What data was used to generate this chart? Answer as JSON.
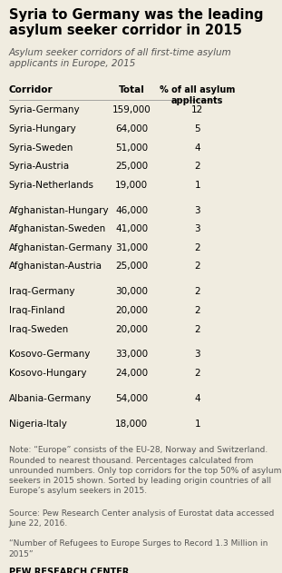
{
  "title": "Syria to Germany was the leading\nasylum seeker corridor in 2015",
  "subtitle": "Asylum seeker corridors of all first-time asylum\napplicants in Europe, 2015",
  "col_header_corridor": "Corridor",
  "col_header_total": "Total",
  "col_header_pct": "% of all asylum\napplicants",
  "rows": [
    {
      "corridor": "Syria-Germany",
      "total": "159,000",
      "pct": "12",
      "group": 1
    },
    {
      "corridor": "Syria-Hungary",
      "total": "64,000",
      "pct": "5",
      "group": 1
    },
    {
      "corridor": "Syria-Sweden",
      "total": "51,000",
      "pct": "4",
      "group": 1
    },
    {
      "corridor": "Syria-Austria",
      "total": "25,000",
      "pct": "2",
      "group": 1
    },
    {
      "corridor": "Syria-Netherlands",
      "total": "19,000",
      "pct": "1",
      "group": 1
    },
    {
      "corridor": "Afghanistan-Hungary",
      "total": "46,000",
      "pct": "3",
      "group": 2
    },
    {
      "corridor": "Afghanistan-Sweden",
      "total": "41,000",
      "pct": "3",
      "group": 2
    },
    {
      "corridor": "Afghanistan-Germany",
      "total": "31,000",
      "pct": "2",
      "group": 2
    },
    {
      "corridor": "Afghanistan-Austria",
      "total": "25,000",
      "pct": "2",
      "group": 2
    },
    {
      "corridor": "Iraq-Germany",
      "total": "30,000",
      "pct": "2",
      "group": 3
    },
    {
      "corridor": "Iraq-Finland",
      "total": "20,000",
      "pct": "2",
      "group": 3
    },
    {
      "corridor": "Iraq-Sweden",
      "total": "20,000",
      "pct": "2",
      "group": 3
    },
    {
      "corridor": "Kosovo-Germany",
      "total": "33,000",
      "pct": "3",
      "group": 4
    },
    {
      "corridor": "Kosovo-Hungary",
      "total": "24,000",
      "pct": "2",
      "group": 4
    },
    {
      "corridor": "Albania-Germany",
      "total": "54,000",
      "pct": "4",
      "group": 5
    },
    {
      "corridor": "Nigeria-Italy",
      "total": "18,000",
      "pct": "1",
      "group": 6
    }
  ],
  "note": "Note: “Europe” consists of the EU-28, Norway and Switzerland.\nRounded to nearest thousand. Percentages calculated from\nunrounded numbers. Only top corridors for the top 50% of asylum\nseekers in 2015 shown. Sorted by leading origin countries of all\nEurope’s asylum seekers in 2015.",
  "source": "Source: Pew Research Center analysis of Eurostat data accessed\nJune 22, 2016.",
  "link": "“Number of Refugees to Europe Surges to Record 1.3 Million in\n2015”",
  "branding": "PEW RESEARCH CENTER",
  "bg_color": "#f0ece0",
  "title_color": "#000000",
  "subtitle_color": "#555555",
  "header_color": "#000000",
  "text_color": "#000000",
  "note_color": "#555555"
}
